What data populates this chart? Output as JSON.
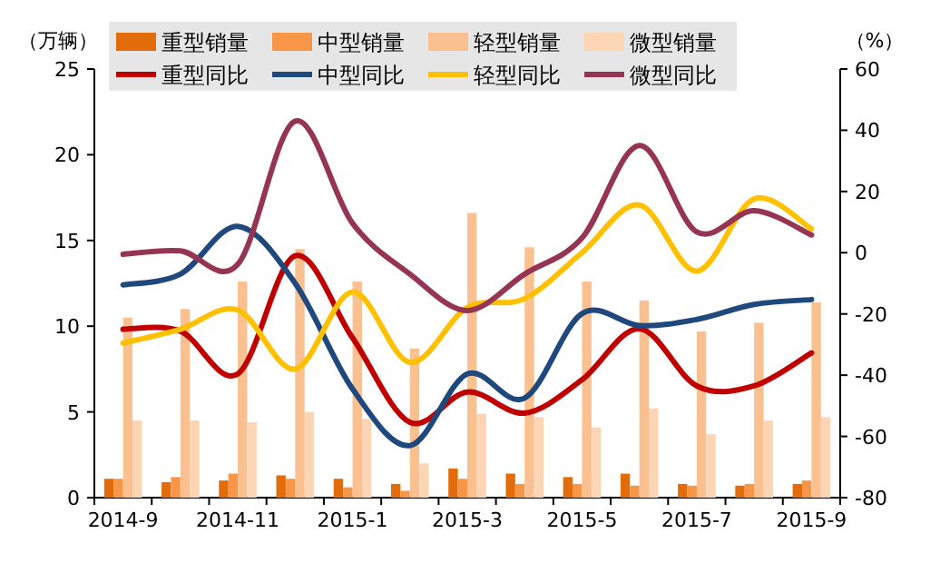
{
  "chart_data": {
    "type": "bar",
    "ylabel": "（万辆）",
    "y2label": "（%）",
    "legend": "top",
    "categories": [
      "2014-9",
      null,
      "2014-11",
      null,
      "2015-1",
      null,
      "2015-3",
      null,
      "2015-5",
      null,
      "2015-7",
      null,
      "2015-9"
    ],
    "ylim": [
      0,
      25
    ],
    "yticks": [
      0,
      5,
      10,
      15,
      20,
      25
    ],
    "y2lim": [
      -80,
      60
    ],
    "y2ticks": [
      -80,
      -60,
      -40,
      -20,
      0,
      20,
      40,
      60
    ],
    "series": [
      {
        "name": "重型销量",
        "color": "#e36c0a",
        "values": [
          1.1,
          0.9,
          1.0,
          1.3,
          1.1,
          0.8,
          1.7,
          1.4,
          1.2,
          1.4,
          0.8,
          0.7,
          0.8
        ]
      },
      {
        "name": "中型销量",
        "color": "#f79646",
        "values": [
          1.1,
          1.2,
          1.4,
          1.1,
          0.6,
          0.4,
          1.1,
          0.8,
          0.8,
          0.7,
          0.7,
          0.8,
          1.0
        ]
      },
      {
        "name": "轻型销量",
        "color": "#fac090",
        "values": [
          10.5,
          11.0,
          12.6,
          14.5,
          12.6,
          8.7,
          16.6,
          14.6,
          12.6,
          11.5,
          9.7,
          10.2,
          11.4
        ]
      },
      {
        "name": "微型销量",
        "color": "#fcd5b5",
        "values": [
          4.5,
          4.5,
          4.4,
          5.0,
          4.6,
          2.0,
          4.9,
          4.7,
          4.1,
          5.2,
          3.7,
          4.5,
          4.7
        ]
      },
      {
        "name": "重型同比",
        "type": "line",
        "axis": "y2",
        "color": "#c00000",
        "values": [
          -25,
          -25.6,
          -39.6,
          -1,
          -27.8,
          -55.4,
          -45.5,
          -52.4,
          -41.5,
          -24.8,
          -43.5,
          -43.5,
          -32.7
        ]
      },
      {
        "name": "中型同比",
        "type": "line",
        "axis": "y2",
        "color": "#1f497d",
        "values": [
          -10.5,
          -7,
          8.6,
          -10,
          -44.5,
          -63,
          -39.6,
          -47.5,
          -19.9,
          -23.8,
          -21.8,
          -16.9,
          -15.3
        ]
      },
      {
        "name": "轻型同比",
        "type": "line",
        "axis": "y2",
        "color": "#ffc000",
        "values": [
          -29.5,
          -25,
          -18.7,
          -38,
          -12.8,
          -35.8,
          -17.9,
          -15,
          0,
          15.6,
          -6,
          17.6,
          7.8
        ]
      },
      {
        "name": "微型同比",
        "type": "line",
        "axis": "y2",
        "color": "#953553",
        "values": [
          -0.5,
          0.6,
          -3.8,
          43,
          9.6,
          -7,
          -18.9,
          -7,
          4.8,
          35,
          6.8,
          13.7,
          5.8
        ]
      }
    ]
  }
}
